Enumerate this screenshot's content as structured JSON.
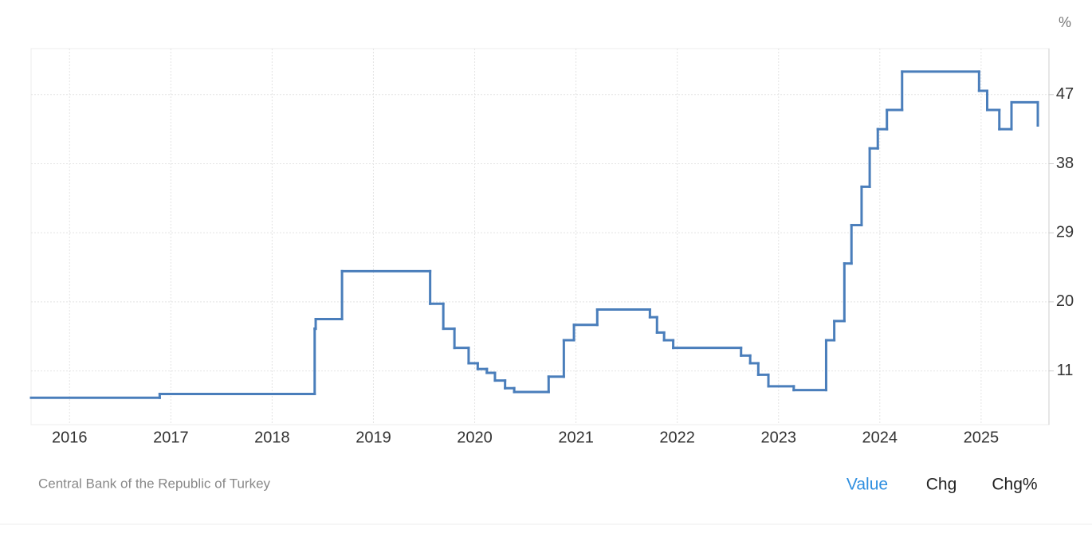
{
  "chart_data": {
    "type": "step",
    "unit_label": "%",
    "source": "Central Bank of the Republic of Turkey",
    "buttons": [
      "Value",
      "Chg",
      "Chg%"
    ],
    "series": [
      {
        "color": "#4a7ebb",
        "x": [
          2015.62,
          2016.89,
          2018.42,
          2018.43,
          2018.69,
          2019.56,
          2019.69,
          2019.8,
          2019.94,
          2020.03,
          2020.12,
          2020.2,
          2020.3,
          2020.39,
          2020.73,
          2020.88,
          2020.98,
          2021.21,
          2021.73,
          2021.8,
          2021.87,
          2021.96,
          2022.63,
          2022.72,
          2022.8,
          2022.9,
          2023.15,
          2023.47,
          2023.55,
          2023.65,
          2023.72,
          2023.82,
          2023.9,
          2023.98,
          2024.07,
          2024.22,
          2024.98,
          2025.06,
          2025.18,
          2025.3,
          2025.56
        ],
        "values": [
          7.5,
          8,
          16.5,
          17.75,
          24,
          19.75,
          16.5,
          14,
          12,
          11.25,
          10.75,
          9.75,
          8.75,
          8.25,
          10.25,
          15,
          17,
          19,
          18,
          16,
          15,
          14,
          13,
          12,
          10.5,
          9,
          8.5,
          15,
          17.5,
          25,
          30,
          35,
          40,
          42.5,
          45,
          50,
          47.5,
          45,
          42.5,
          46,
          43
        ]
      }
    ],
    "xlim": [
      2015.62,
      2025.67
    ],
    "xticks": [
      2016,
      2017,
      2018,
      2019,
      2020,
      2021,
      2022,
      2023,
      2024,
      2025
    ],
    "ylim": [
      4,
      53
    ],
    "yticks": [
      11,
      20,
      29,
      38,
      47
    ],
    "grid": true
  }
}
